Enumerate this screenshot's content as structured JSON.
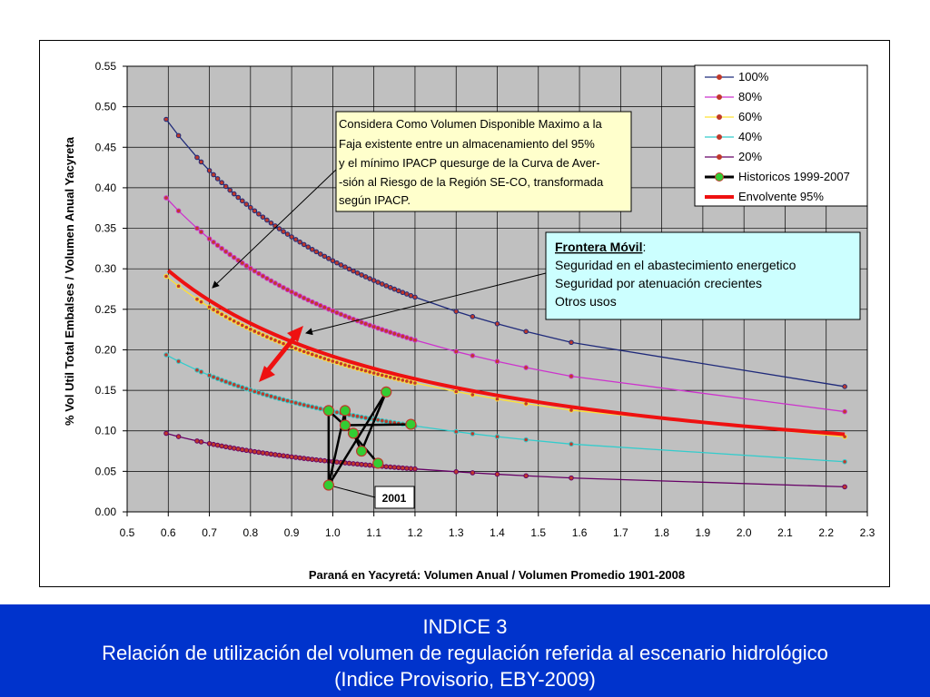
{
  "chart_data": {
    "type": "line",
    "xlabel": "Paraná en Yacyretá:  Volumen Anual  / Volumen Promedio 1901-2008",
    "ylabel": "% Vol Util Total Embalses / Volumen Anual Yacyreta",
    "xlim": [
      0.5,
      2.3
    ],
    "ylim": [
      0.0,
      0.55
    ],
    "xticks": [
      "0.5",
      "0.6",
      "0.7",
      "0.8",
      "0.9",
      "1.0",
      "1.1",
      "1.2",
      "1.3",
      "1.4",
      "1.5",
      "1.6",
      "1.7",
      "1.8",
      "1.9",
      "2.0",
      "2.1",
      "2.2",
      "2.3"
    ],
    "yticks": [
      "0.00",
      "0.05",
      "0.10",
      "0.15",
      "0.20",
      "0.25",
      "0.30",
      "0.35",
      "0.40",
      "0.45",
      "0.50",
      "0.55"
    ],
    "grid": true,
    "legend_position": "top-right",
    "series": [
      {
        "name": "100%",
        "color": "#1f2a7a",
        "marker": "#c0392b",
        "k": 0.31
      },
      {
        "name": "80%",
        "color": "#cc33cc",
        "marker": "#c0392b",
        "k": 0.248
      },
      {
        "name": "60%",
        "color": "#ffe033",
        "marker": "#c0392b",
        "k": 0.186
      },
      {
        "name": "40%",
        "color": "#33cccc",
        "marker": "#c0392b",
        "k": 0.124
      },
      {
        "name": "20%",
        "color": "#660066",
        "marker": "#c0392b",
        "k": 0.062
      }
    ],
    "x_points": [
      0.595,
      0.625,
      0.67,
      0.68,
      0.7,
      0.71,
      0.72,
      0.73,
      0.74,
      0.75,
      0.76,
      0.77,
      0.78,
      0.79,
      0.8,
      0.81,
      0.82,
      0.83,
      0.84,
      0.85,
      0.86,
      0.87,
      0.88,
      0.89,
      0.9,
      0.91,
      0.92,
      0.93,
      0.94,
      0.95,
      0.96,
      0.97,
      0.98,
      0.99,
      1.0,
      1.01,
      1.02,
      1.03,
      1.04,
      1.05,
      1.06,
      1.07,
      1.08,
      1.09,
      1.1,
      1.11,
      1.12,
      1.13,
      1.14,
      1.15,
      1.16,
      1.17,
      1.18,
      1.19,
      1.2,
      1.3,
      1.34,
      1.4,
      1.47,
      1.58,
      2.245
    ],
    "historicos": {
      "name": "Historicos 1999-2007",
      "color": "#000000",
      "marker": "#33cc33",
      "points": [
        [
          0.99,
          0.125
        ],
        [
          1.03,
          0.125
        ],
        [
          1.03,
          0.107
        ],
        [
          1.05,
          0.097
        ],
        [
          1.07,
          0.075
        ],
        [
          1.11,
          0.06
        ],
        [
          1.13,
          0.148
        ],
        [
          1.19,
          0.108
        ],
        [
          0.99,
          0.033
        ]
      ]
    },
    "envolvente": {
      "name": "Envolvente 95%",
      "color": "#ee1111",
      "k": 0.192
    },
    "annotations": {
      "box1_lines": [
        "Considera Como Volumen Disponible Maximo a la",
        "Faja existente entre un almacenamiento del 95%",
        "y el mínimo IPACP quesurge de la Curva de Aver-",
        "-sión al Riesgo de la Región SE-CO, transformada",
        " según IPACP."
      ],
      "box2_title": "Frontera Móvil",
      "box2_colon": ":",
      "box2_lines": [
        "Seguridad en el abastecimiento energetico",
        "Seguridad por atenuación crecientes",
        "Otros usos"
      ],
      "label_2001": "2001"
    }
  },
  "footer": {
    "line1": "INDICE 3",
    "line2": "Relación de utilización del volumen de regulación referida al escenario hidrológico",
    "line3": "(Indice Provisorio, EBY-2009)"
  }
}
